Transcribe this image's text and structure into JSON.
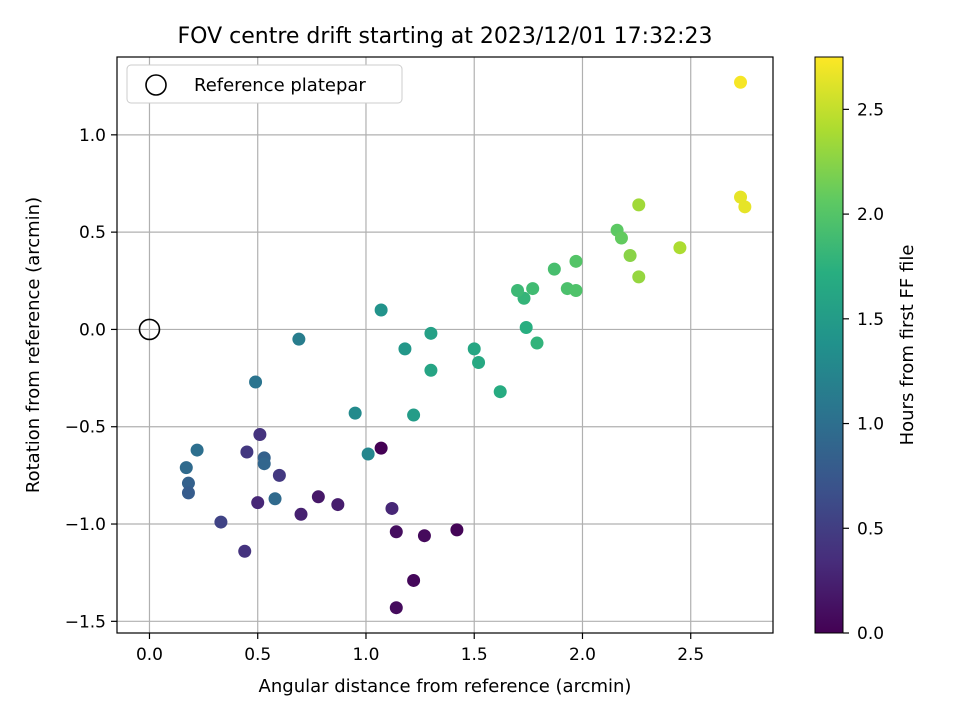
{
  "chart_data": {
    "type": "scatter",
    "title": "FOV centre drift starting at 2023/12/01 17:32:23",
    "xlabel": "Angular distance from reference (arcmin)",
    "ylabel": "Rotation from reference (arcmin)",
    "xlim": [
      -0.15,
      2.88
    ],
    "ylim": [
      -1.56,
      1.4
    ],
    "xticks": [
      0.0,
      0.5,
      1.0,
      1.5,
      2.0,
      2.5
    ],
    "xtick_labels": [
      "0.0",
      "0.5",
      "1.0",
      "1.5",
      "2.0",
      "2.5"
    ],
    "yticks": [
      -1.5,
      -1.0,
      -0.5,
      0.0,
      0.5,
      1.0
    ],
    "ytick_labels": [
      "−1.5",
      "−1.0",
      "−0.5",
      "0.0",
      "0.5",
      "1.0"
    ],
    "grid": true,
    "legend": {
      "position": "top-left",
      "entries": [
        {
          "label": "Reference platepar",
          "marker": "open-circle"
        }
      ]
    },
    "reference_point": {
      "x": 0.0,
      "y": 0.0
    },
    "colorbar": {
      "label": "Hours from first FF file",
      "colormap": "viridis",
      "range": [
        0.0,
        2.75
      ],
      "ticks": [
        0.0,
        0.5,
        1.0,
        1.5,
        2.0,
        2.5
      ],
      "tick_labels": [
        "0.0",
        "0.5",
        "1.0",
        "1.5",
        "2.0",
        "2.5"
      ]
    },
    "points": [
      {
        "x": 1.07,
        "y": -0.61,
        "h": 0.0
      },
      {
        "x": 1.42,
        "y": -1.03,
        "h": 0.03
      },
      {
        "x": 1.27,
        "y": -1.06,
        "h": 0.07
      },
      {
        "x": 1.22,
        "y": -1.29,
        "h": 0.05
      },
      {
        "x": 1.14,
        "y": -1.43,
        "h": 0.08
      },
      {
        "x": 1.14,
        "y": -1.04,
        "h": 0.1
      },
      {
        "x": 1.12,
        "y": -0.92,
        "h": 0.3
      },
      {
        "x": 0.87,
        "y": -0.9,
        "h": 0.22
      },
      {
        "x": 0.78,
        "y": -0.86,
        "h": 0.18
      },
      {
        "x": 0.7,
        "y": -0.95,
        "h": 0.25
      },
      {
        "x": 0.6,
        "y": -0.75,
        "h": 0.45
      },
      {
        "x": 0.5,
        "y": -0.89,
        "h": 0.3
      },
      {
        "x": 0.51,
        "y": -0.54,
        "h": 0.4
      },
      {
        "x": 0.45,
        "y": -0.63,
        "h": 0.45
      },
      {
        "x": 0.44,
        "y": -1.14,
        "h": 0.4
      },
      {
        "x": 0.33,
        "y": -0.99,
        "h": 0.55
      },
      {
        "x": 0.58,
        "y": -0.87,
        "h": 0.95
      },
      {
        "x": 0.53,
        "y": -0.66,
        "h": 0.85
      },
      {
        "x": 0.53,
        "y": -0.69,
        "h": 0.9
      },
      {
        "x": 0.49,
        "y": -0.27,
        "h": 1.05
      },
      {
        "x": 0.22,
        "y": -0.62,
        "h": 1.0
      },
      {
        "x": 0.17,
        "y": -0.71,
        "h": 0.95
      },
      {
        "x": 0.18,
        "y": -0.79,
        "h": 0.85
      },
      {
        "x": 0.18,
        "y": -0.84,
        "h": 0.8
      },
      {
        "x": 0.69,
        "y": -0.05,
        "h": 1.15
      },
      {
        "x": 1.01,
        "y": -0.64,
        "h": 1.25
      },
      {
        "x": 0.95,
        "y": -0.43,
        "h": 1.3
      },
      {
        "x": 1.07,
        "y": 0.1,
        "h": 1.4
      },
      {
        "x": 1.18,
        "y": -0.1,
        "h": 1.45
      },
      {
        "x": 1.22,
        "y": -0.44,
        "h": 1.5
      },
      {
        "x": 1.3,
        "y": -0.02,
        "h": 1.55
      },
      {
        "x": 1.3,
        "y": -0.21,
        "h": 1.6
      },
      {
        "x": 1.5,
        "y": -0.1,
        "h": 1.62
      },
      {
        "x": 1.52,
        "y": -0.17,
        "h": 1.65
      },
      {
        "x": 1.62,
        "y": -0.32,
        "h": 1.68
      },
      {
        "x": 1.74,
        "y": 0.01,
        "h": 1.72
      },
      {
        "x": 1.79,
        "y": -0.07,
        "h": 1.78
      },
      {
        "x": 1.73,
        "y": 0.16,
        "h": 1.8
      },
      {
        "x": 1.7,
        "y": 0.2,
        "h": 1.85
      },
      {
        "x": 1.77,
        "y": 0.21,
        "h": 1.88
      },
      {
        "x": 1.87,
        "y": 0.31,
        "h": 1.92
      },
      {
        "x": 1.93,
        "y": 0.21,
        "h": 1.95
      },
      {
        "x": 1.97,
        "y": 0.2,
        "h": 1.97
      },
      {
        "x": 1.97,
        "y": 0.35,
        "h": 2.0
      },
      {
        "x": 2.16,
        "y": 0.51,
        "h": 2.05
      },
      {
        "x": 2.18,
        "y": 0.47,
        "h": 2.08
      },
      {
        "x": 2.22,
        "y": 0.38,
        "h": 2.25
      },
      {
        "x": 2.26,
        "y": 0.27,
        "h": 2.3
      },
      {
        "x": 2.26,
        "y": 0.64,
        "h": 2.35
      },
      {
        "x": 2.45,
        "y": 0.42,
        "h": 2.4
      },
      {
        "x": 2.73,
        "y": 0.68,
        "h": 2.65
      },
      {
        "x": 2.75,
        "y": 0.63,
        "h": 2.65
      },
      {
        "x": 2.73,
        "y": 1.27,
        "h": 2.72
      }
    ]
  }
}
